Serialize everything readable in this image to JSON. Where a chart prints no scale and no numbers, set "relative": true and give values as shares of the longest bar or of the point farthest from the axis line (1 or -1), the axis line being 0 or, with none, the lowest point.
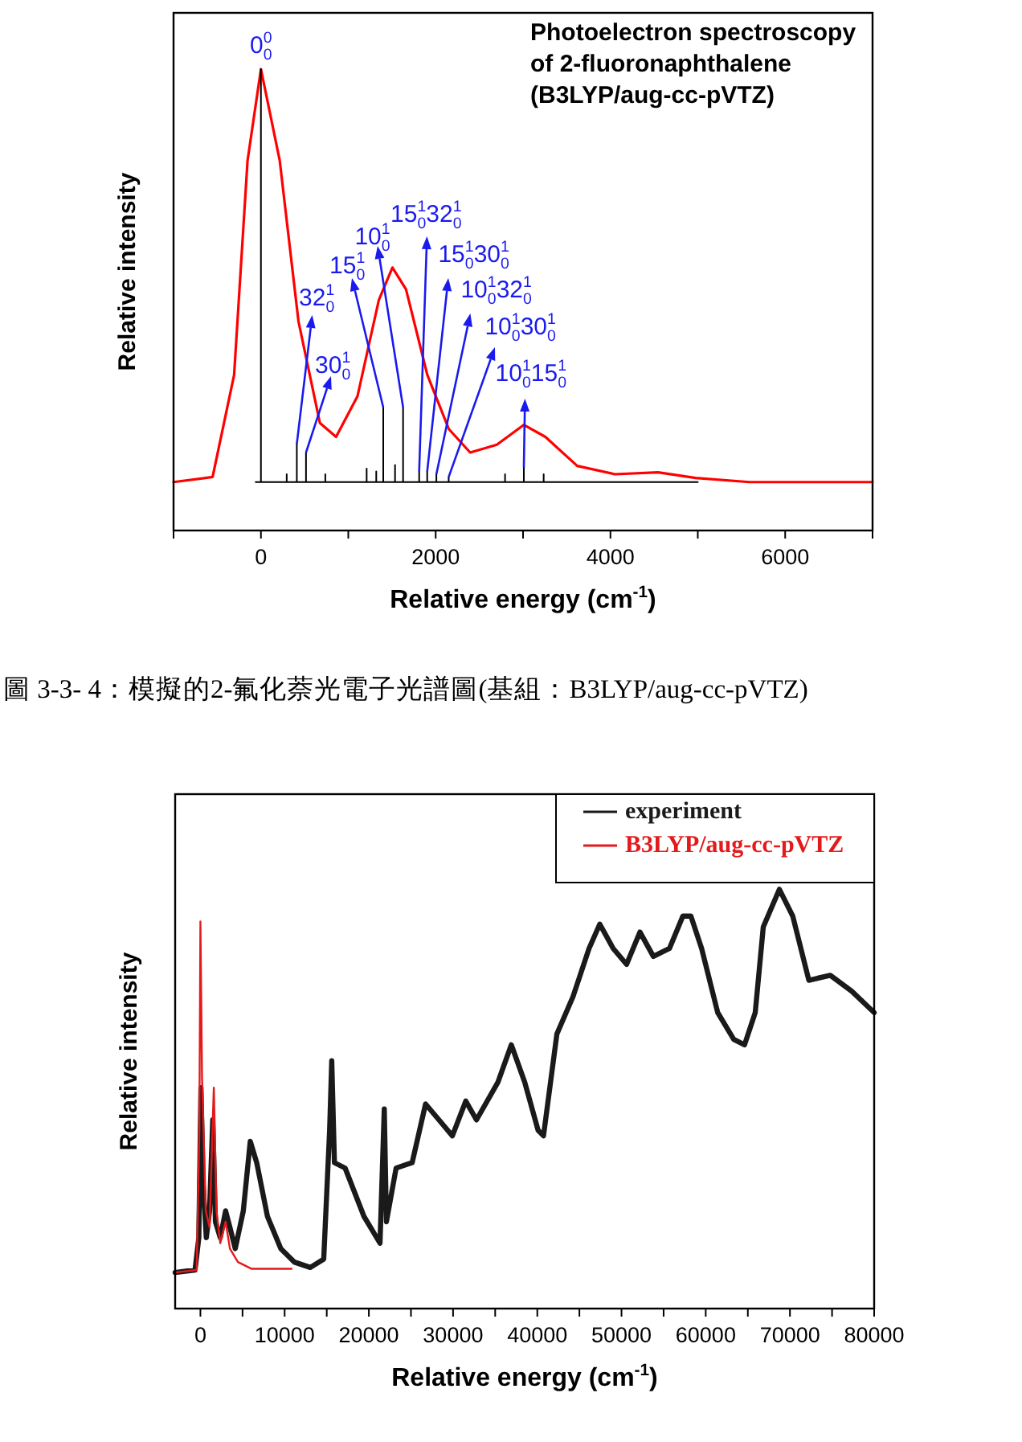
{
  "chart_data": [
    {
      "type": "line",
      "title": "Photoelectron spectroscopy of 2-fluoronaphthalene (B3LYP/aug-cc-pVTZ)",
      "xlabel": "Relative energy (cm$^{-1}$)",
      "ylabel": "Relative intensity",
      "relative": true,
      "line_style": "solid",
      "xlim": [
        -1000,
        7000
      ],
      "xticks": [
        {
          "value": -1000,
          "label": null
        },
        0,
        {
          "value": 1000,
          "label": null
        },
        2000,
        {
          "value": 3000,
          "label": null
        },
        4000,
        {
          "value": 5000,
          "label": null
        },
        6000,
        {
          "value": 7000,
          "label": null
        }
      ],
      "series": [
        {
          "color": "#ff0000",
          "x": [
            -1000,
            -553,
            -307,
            -153,
            0,
            215,
            430,
            675,
            860,
            1105,
            1350,
            1505,
            1660,
            1905,
            2150,
            2395,
            2700,
            3010,
            3255,
            3620,
            4050,
            4545,
            4975,
            5590,
            7000
          ],
          "values": [
            0.105,
            0.116,
            0.337,
            0.802,
            1,
            0.802,
            0.453,
            0.233,
            0.203,
            0.291,
            0.5,
            0.57,
            0.523,
            0.337,
            0.22,
            0.169,
            0.186,
            0.229,
            0.203,
            0.14,
            0.122,
            0.126,
            0.114,
            0.105,
            0.105
          ]
        },
        {
          "color": "#000000",
          "x": [
            -60,
            0,
            0,
            0,
            295,
            295,
            295,
            411,
            411,
            411,
            516,
            516,
            516,
            737,
            737,
            737,
            1210,
            1210,
            1210,
            1320,
            1320,
            1320,
            1400,
            1400,
            1400,
            1535,
            1535,
            1535,
            1627,
            1627,
            1627,
            1811,
            1811,
            1811,
            1903,
            1903,
            1903,
            2008,
            2008,
            2008,
            2149,
            2149,
            2149,
            2794,
            2794,
            2794,
            3009,
            3009,
            3009,
            3236,
            3236,
            3236,
            5000
          ],
          "values": [
            0.105,
            0.105,
            1,
            0.105,
            0.105,
            0.122,
            0.105,
            0.105,
            0.188,
            0.105,
            0.105,
            0.169,
            0.105,
            0.105,
            0.122,
            0.105,
            0.105,
            0.134,
            0.105,
            0.105,
            0.128,
            0.105,
            0.105,
            0.267,
            0.105,
            0.105,
            0.142,
            0.105,
            0.105,
            0.267,
            0.105,
            0.105,
            0.128,
            0.105,
            0.105,
            0.128,
            0.105,
            0.105,
            0.122,
            0.105,
            0.105,
            0.116,
            0.105,
            0.105,
            0.122,
            0.105,
            0.105,
            0.137,
            0.105,
            0.105,
            0.122,
            0.105,
            0.105
          ]
        }
      ],
      "annotations": [
        {
          "text": "0$^{0}$$_{0}$",
          "x": 0,
          "y": 1
        },
        {
          "text": "32$^{1}$$_{0}$",
          "x": 411,
          "y": 0.188
        },
        {
          "text": "30$^{1}$$_{0}$",
          "x": 516,
          "y": 0.169
        },
        {
          "text": "15$^{1}$$_{0}$",
          "x": 1400,
          "y": 0.267
        },
        {
          "text": "10$^{1}$$_{0}$",
          "x": 1627,
          "y": 0.267
        },
        {
          "text": "15$^{1}$$_{0}$32$^{1}$$_{0}$",
          "x": 1811,
          "y": 0.128
        },
        {
          "text": "15$^{1}$$_{0}$30$^{1}$$_{0}$",
          "x": 1903,
          "y": 0.128
        },
        {
          "text": "10$^{1}$$_{0}$32$^{1}$$_{0}$",
          "x": 2008,
          "y": 0.122
        },
        {
          "text": "10$^{1}$$_{0}$30$^{1}$$_{0}$",
          "x": 2149,
          "y": 0.116
        },
        {
          "text": "10$^{1}$$_{0}$15$^{1}$$_{0}$",
          "x": 3009,
          "y": 0.137
        },
        "圖 3-3- 4：模擬的2-氟化萘光電子光譜圖(基組：B3LYP/aug-cc-pVTZ)"
      ]
    },
    {
      "type": "line",
      "xlabel": "Relative energy (cm$^{-1}$)",
      "ylabel": "Relative intensity",
      "relative": true,
      "line_style": "solid",
      "legend": "top right",
      "xlim": [
        -3000,
        80000
      ],
      "xticks": [
        0,
        {
          "value": 5000,
          "label": null
        },
        10000,
        {
          "value": 15000,
          "label": null
        },
        20000,
        {
          "value": 25000,
          "label": null
        },
        30000,
        {
          "value": 35000,
          "label": null
        },
        40000,
        {
          "value": 45000,
          "label": null
        },
        50000,
        {
          "value": 55000,
          "label": null
        },
        60000,
        {
          "value": 65000,
          "label": null
        },
        70000,
        {
          "value": 75000,
          "label": null
        },
        80000
      ],
      "series": [
        {
          "name": "experiment",
          "color": "#1a1a1a",
          "x": [
            -3000,
            -637,
            -191,
            64,
            318,
            700,
            1082,
            1464,
            1782,
            2355,
            2992,
            3501,
            4137,
            5092,
            5919,
            6683,
            7956,
            9548,
            11139,
            13048,
            14640,
            15340,
            15594,
            15913,
            17186,
            19413,
            21323,
            21832,
            22087,
            23233,
            25142,
            26733,
            28324,
            29916,
            31507,
            32780,
            35326,
            36917,
            38508,
            40100,
            40736,
            42327,
            44237,
            46146,
            47419,
            49011,
            50602,
            52193,
            53784,
            55694,
            57285,
            58240,
            59513,
            61422,
            63332,
            64605,
            65878,
            66833,
            68742,
            70333,
            72243,
            74789,
            77335,
            80000
          ],
          "values": [
            0.086,
            0.092,
            0.169,
            0.527,
            0.297,
            0.169,
            0.233,
            0.45,
            0.207,
            0.169,
            0.233,
            0.194,
            0.143,
            0.233,
            0.399,
            0.348,
            0.22,
            0.143,
            0.111,
            0.098,
            0.118,
            0.425,
            0.591,
            0.348,
            0.335,
            0.22,
            0.156,
            0.476,
            0.207,
            0.335,
            0.348,
            0.488,
            0.45,
            0.412,
            0.495,
            0.45,
            0.54,
            0.629,
            0.54,
            0.425,
            0.412,
            0.655,
            0.744,
            0.859,
            0.917,
            0.859,
            0.821,
            0.898,
            0.84,
            0.859,
            0.936,
            0.936,
            0.859,
            0.706,
            0.642,
            0.629,
            0.706,
            0.91,
            1,
            0.936,
            0.783,
            0.795,
            0.757,
            0.706
          ]
        },
        {
          "name": "B3LYP/aug-cc-pVTZ",
          "color": "#e31a1c",
          "x": [
            -3000,
            -446,
            -127,
            0,
            191,
            637,
            1082,
            1591,
            1910,
            2355,
            2992,
            3501,
            4455,
            6047,
            10821
          ],
          "values": [
            0.086,
            0.092,
            0.425,
            0.923,
            0.552,
            0.233,
            0.194,
            0.527,
            0.233,
            0.156,
            0.207,
            0.143,
            0.111,
            0.095,
            0.095
          ]
        }
      ]
    }
  ]
}
